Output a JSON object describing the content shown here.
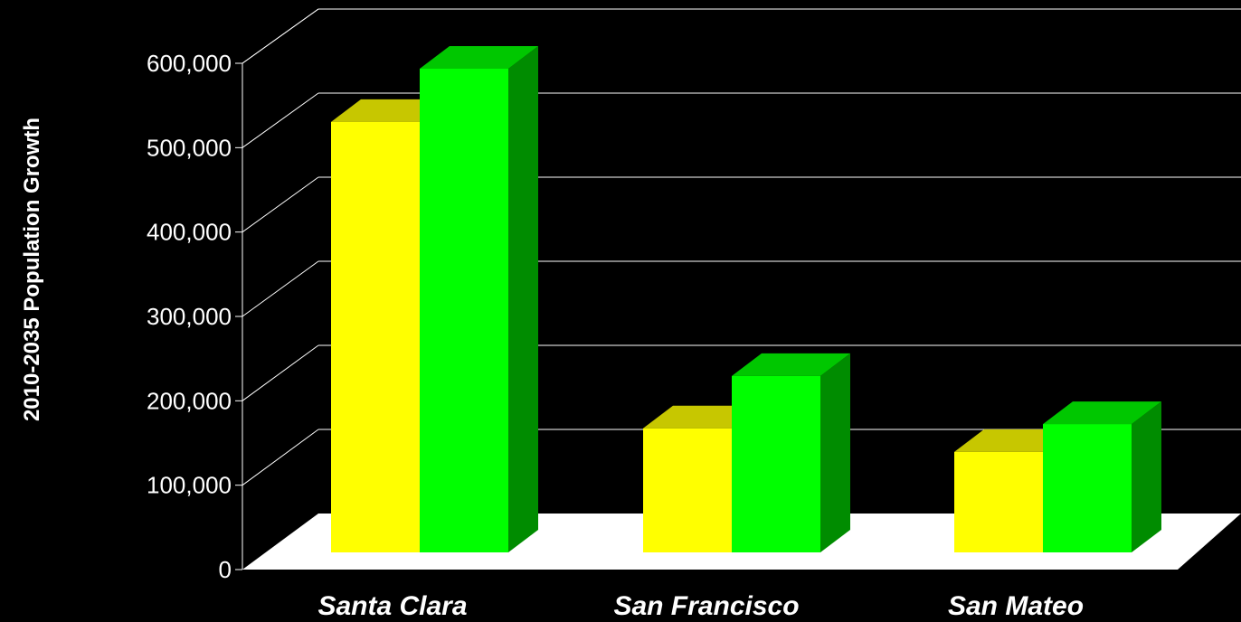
{
  "chart_data": {
    "type": "bar",
    "categories": [
      "Santa Clara",
      "San Francisco",
      "San Mateo"
    ],
    "series": [
      {
        "color": "#FFFF00",
        "values": [
          510000,
          147000,
          119000
        ]
      },
      {
        "color": "#00FF00",
        "values": [
          573000,
          209000,
          152000
        ]
      }
    ],
    "y_ticks": [
      0,
      100000,
      200000,
      300000,
      400000,
      500000,
      600000
    ],
    "y_tick_labels": [
      "0",
      "100,000",
      "200,000",
      "300,000",
      "400,000",
      "500,000",
      "600,000"
    ],
    "ylim": [
      0,
      600000
    ],
    "ylabel": "2010-2035 Population Growth",
    "xlabel": "",
    "title": "",
    "grid": true,
    "legend": false,
    "three_d": true,
    "background": "#000000",
    "floor_color": "#FFFFFF",
    "gridline_color": "#FFFFFF",
    "text_color": "#FFFFFF"
  }
}
